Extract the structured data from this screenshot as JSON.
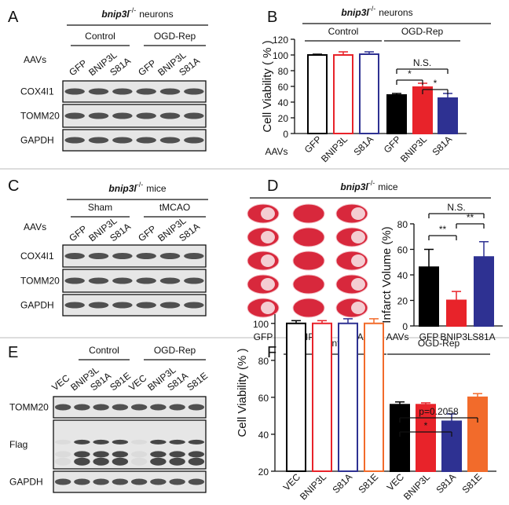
{
  "panel_labels": [
    "A",
    "B",
    "C",
    "D",
    "E",
    "F"
  ],
  "blots": [
    {
      "header": {
        "gene": "bnip3l",
        "genotype": "-/-",
        "label": "neurons"
      },
      "groups": [
        "Control",
        "OGD-Rep"
      ],
      "lane_label": "AAVs",
      "lanes": [
        "GFP",
        "BNIP3L",
        "S81A",
        "GFP",
        "BNIP3L",
        "S81A"
      ],
      "bands": [
        "COX4I1",
        "TOMM20",
        "GAPDH"
      ]
    },
    {
      "header": {
        "gene": "bnip3l",
        "genotype": "-/-",
        "label": "mice"
      },
      "groups": [
        "Sham",
        "tMCAO"
      ],
      "lane_label": "AAVs",
      "lanes": [
        "GFP",
        "BNIP3L",
        "S81A",
        "GFP",
        "BNIP3L",
        "S81A"
      ],
      "bands": [
        "COX4I1",
        "TOMM20",
        "GAPDH"
      ]
    },
    {
      "groups": [
        "Control",
        "OGD-Rep"
      ],
      "lanes": [
        "VEC",
        "BNIP3L",
        "S81A",
        "S81E",
        "VEC",
        "BNIP3L",
        "S81A",
        "S81E"
      ],
      "bands": [
        "TOMM20",
        "Flag",
        "GAPDH"
      ]
    }
  ],
  "chart_data": [
    {
      "type": "bar",
      "header": {
        "gene": "bnip3l",
        "genotype": "-/-",
        "label": "neurons"
      },
      "groups": [
        "Control",
        "OGD-Rep"
      ],
      "y_label": "Cell Viability ( % )",
      "x_label": "AAVs",
      "categories": [
        "GFP",
        "BNIP3L",
        "S81A",
        "GFP",
        "BNIP3L",
        "S81A"
      ],
      "values": [
        100,
        100,
        101,
        49,
        59,
        45
      ],
      "errors": [
        1,
        4,
        3,
        2,
        5,
        6
      ],
      "colors": [
        "#000000",
        "#e8232a",
        "#2e3192",
        "#000000",
        "#e8232a",
        "#2e3192"
      ],
      "filled": [
        false,
        false,
        false,
        true,
        true,
        true
      ],
      "ylim": [
        0,
        120
      ],
      "yticks": [
        0,
        20,
        40,
        60,
        80,
        100,
        120
      ],
      "annotations": [
        "N.S.",
        "*",
        "*"
      ]
    },
    {
      "type": "bar",
      "header": {
        "gene": "bnip3l",
        "genotype": "-/-",
        "label": "mice"
      },
      "image_labels": [
        "GFP",
        "BNIP3L",
        "S81A"
      ],
      "y_label": "Infarct Volume (%)",
      "x_label": "AAVs",
      "categories": [
        "GFP",
        "BNIP3L",
        "S81A"
      ],
      "values": [
        46,
        20,
        54
      ],
      "errors": [
        14,
        7,
        12
      ],
      "colors": [
        "#000000",
        "#e8232a",
        "#2e3192"
      ],
      "filled": [
        true,
        true,
        true
      ],
      "ylim": [
        0,
        80
      ],
      "yticks": [
        0,
        20,
        40,
        60,
        80
      ],
      "annotations": [
        "N.S.",
        "**",
        "**"
      ]
    },
    {
      "type": "bar",
      "groups": [
        "Control",
        "OGD-Rep"
      ],
      "y_label": "Cell Viability (% )",
      "categories": [
        "VEC",
        "BNIP3L",
        "S81A",
        "S81E",
        "VEC",
        "BNIP3L",
        "S81A",
        "S81E"
      ],
      "values": [
        100,
        100,
        100,
        100,
        56,
        56,
        47,
        60
      ],
      "errors": [
        1.5,
        1.5,
        2.5,
        2.5,
        1.5,
        1,
        4,
        2
      ],
      "colors": [
        "#000000",
        "#e8232a",
        "#2e3192",
        "#f26b2b",
        "#000000",
        "#e8232a",
        "#2e3192",
        "#f26b2b"
      ],
      "filled": [
        false,
        false,
        false,
        false,
        true,
        true,
        true,
        true
      ],
      "ylim": [
        20,
        105
      ],
      "yticks": [
        20,
        40,
        60,
        80,
        100
      ],
      "annotations": [
        "p=0.2058",
        "*"
      ]
    }
  ]
}
